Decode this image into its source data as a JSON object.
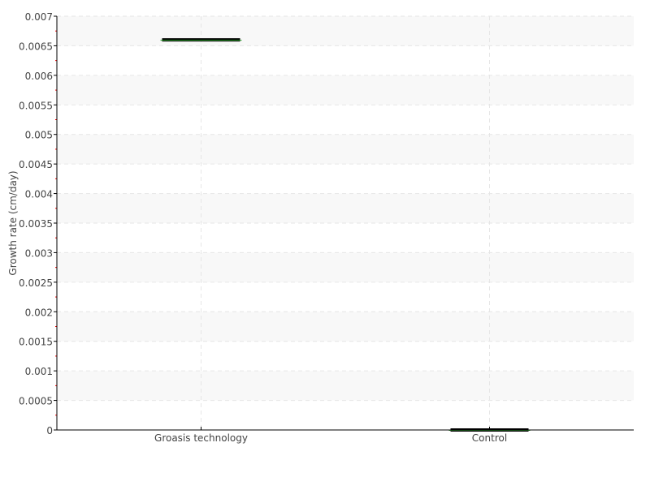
{
  "chart_data": {
    "type": "box",
    "title": "",
    "xlabel": "",
    "ylabel": "Growth rate (cm/day)",
    "ylim": [
      0,
      0.007
    ],
    "yticks": [
      "0",
      "0.0005",
      "0.001",
      "0.0015",
      "0.002",
      "0.0025",
      "0.003",
      "0.0035",
      "0.004",
      "0.0045",
      "0.005",
      "0.0055",
      "0.006",
      "0.0065",
      "0.007"
    ],
    "ytick_values": [
      0,
      0.0005,
      0.001,
      0.0015,
      0.002,
      0.0025,
      0.003,
      0.0035,
      0.004,
      0.0045,
      0.005,
      0.0055,
      0.006,
      0.0065,
      0.007
    ],
    "categories": [
      "Groasis technology",
      "Control"
    ],
    "values": [
      0.0066,
      0
    ],
    "grid": true,
    "colors": {
      "box": "#000000",
      "median": "#2ca02c",
      "band": "#f8f8f8",
      "grid": "#e6e6e6",
      "minor_tick": "#ff0000"
    }
  }
}
